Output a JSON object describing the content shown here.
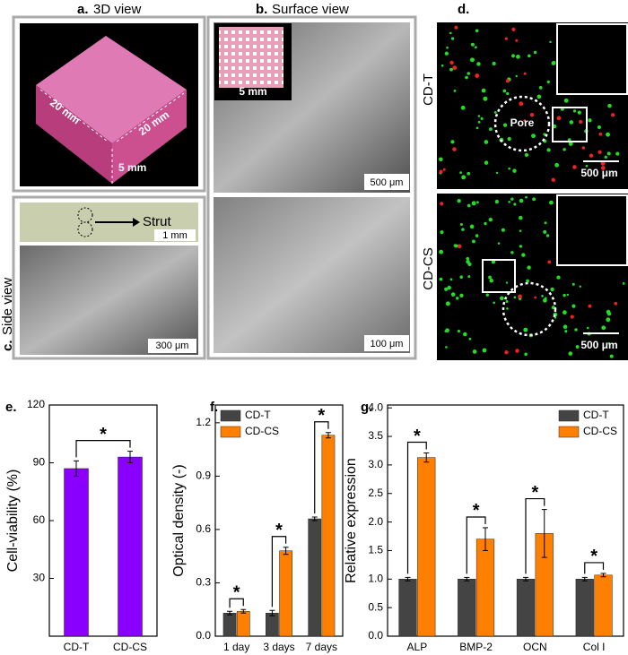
{
  "panels": {
    "a": {
      "label": "a.",
      "title": "3D view",
      "annotations": [
        "20 mm",
        "20 mm",
        "5 mm"
      ]
    },
    "b": {
      "label": "b.",
      "title": "Surface view",
      "scale_bars": [
        "5 mm",
        "500 μm",
        "100 μm"
      ]
    },
    "c": {
      "label": "c.",
      "title": "Side view",
      "annotation": "Strut",
      "scale_bars": [
        "1 mm",
        "300 μm"
      ]
    },
    "d": {
      "label": "d.",
      "groups": [
        "CD-T",
        "CD-CS"
      ],
      "annotation": "Pore",
      "scale_bars": [
        "500 μm",
        "500 μm"
      ]
    }
  },
  "chart_data": [
    {
      "type": "bar",
      "panel_label": "e.",
      "y_label": "Cell-viability (%)",
      "categories": [
        "CD-T",
        "CD-CS"
      ],
      "values": [
        87,
        93
      ],
      "errors": [
        4,
        3
      ],
      "color": "#8a00ff",
      "ylim": [
        0,
        120
      ],
      "yticks": [
        30,
        60,
        90,
        120
      ],
      "significance": [
        "*"
      ]
    },
    {
      "type": "bar",
      "panel_label": "f.",
      "y_label": "Optical density (-)",
      "categories": [
        "1 day",
        "3 days",
        "7 days"
      ],
      "series": [
        {
          "name": "CD-T",
          "color": "#444444",
          "values": [
            0.13,
            0.13,
            0.66
          ],
          "errors": [
            0.01,
            0.015,
            0.01
          ]
        },
        {
          "name": "CD-CS",
          "color": "#ff8000",
          "values": [
            0.14,
            0.48,
            1.13
          ],
          "errors": [
            0.01,
            0.02,
            0.015
          ]
        }
      ],
      "ylim": [
        0,
        1.3
      ],
      "yticks": [
        {
          "value": 0,
          "label": "0.0"
        },
        0.3,
        0.6,
        0.9,
        1.2
      ],
      "legend": "upper left",
      "significance": [
        "*",
        "*",
        "*"
      ]
    },
    {
      "type": "bar",
      "panel_label": "g.",
      "y_label": "Relative expression",
      "categories": [
        "ALP",
        "BMP-2",
        "OCN",
        "Col I"
      ],
      "series": [
        {
          "name": "CD-T",
          "color": "#444444",
          "values": [
            1,
            1,
            1,
            1
          ],
          "errors": [
            0.03,
            0.03,
            0.03,
            0.03
          ]
        },
        {
          "name": "CD-CS",
          "color": "#ff8000",
          "values": [
            3.13,
            1.7,
            1.8,
            1.07
          ],
          "errors": [
            0.08,
            0.2,
            0.42,
            0.03
          ]
        }
      ],
      "ylim": [
        0,
        4.05
      ],
      "yticks": [
        {
          "value": 0,
          "label": "0.0"
        },
        0.5,
        {
          "value": 1,
          "label": "1.0"
        },
        1.5,
        {
          "value": 2,
          "label": "2.0"
        },
        2.5,
        {
          "value": 3,
          "label": "3.0"
        },
        3.5,
        {
          "value": 4,
          "label": "4.0"
        }
      ],
      "legend": "upper right",
      "significance": [
        "*",
        "*",
        "*",
        "*"
      ]
    }
  ]
}
